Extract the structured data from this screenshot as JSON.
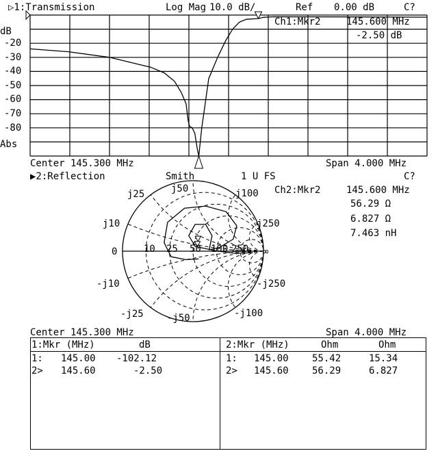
{
  "channel1": {
    "title": "▷1:Transmission",
    "format": "Log Mag",
    "scale": "10.0 dB/",
    "ref_label": "Ref",
    "ref_value": "0.00 dB",
    "cal_status": "C?",
    "marker_readout": {
      "label": "Ch1:Mkr2",
      "freq": "145.600 MHz",
      "value": "-2.50 dB"
    },
    "y_unit": "dB",
    "y_ticks": [
      "-20",
      "-30",
      "-40",
      "-50",
      "-60",
      "-70",
      "-80"
    ],
    "y_bottom_label": "Abs",
    "center": "Center 145.300 MHz",
    "span": "Span 4.000 MHz"
  },
  "channel2": {
    "title": "▶2:Reflection",
    "format": "Smith",
    "scale": "1 U FS",
    "cal_status": "C?",
    "marker_readout": {
      "label": "Ch2:Mkr2",
      "freq": "145.600 MHz",
      "resistance": "56.29 Ω",
      "reactance": "6.827 Ω",
      "inductance": "7.463 nH"
    },
    "smith_labels": {
      "zero": "0",
      "inf": "∞",
      "r10": "10",
      "r25": "25",
      "r50": "50",
      "r100": "100",
      "r250": "250",
      "jp10": "j10",
      "jp25": "j25",
      "jp50": "j50",
      "jp100": "j100",
      "jp250": "j250",
      "jn10": "-j10",
      "jn25": "-j25",
      "jn50": "-j50",
      "jn100": "-j100",
      "jn250": "-j250"
    },
    "center": "Center 145.300 MHz",
    "span": "Span 4.000 MHz"
  },
  "marker_table": {
    "left": {
      "headers": [
        "1:Mkr (MHz)",
        "dB"
      ],
      "rows": [
        [
          "1:",
          "145.00",
          "-102.12"
        ],
        [
          "2>",
          "145.60",
          "-2.50"
        ]
      ]
    },
    "right": {
      "headers": [
        "2:Mkr (MHz)",
        "Ohm",
        "Ohm"
      ],
      "rows": [
        [
          "1:",
          "145.00",
          "55.42",
          "15.34"
        ],
        [
          "2>",
          "145.60",
          "56.29",
          "6.827"
        ]
      ]
    }
  },
  "chart_data": [
    {
      "type": "line",
      "title": "Transmission",
      "xlabel": "",
      "ylabel": "dB",
      "xlim": [
        143.3,
        147.3
      ],
      "ylim": [
        -100,
        0
      ],
      "grid": true,
      "x": [
        143.3,
        143.686,
        144.1,
        144.514,
        144.652,
        144.755,
        144.824,
        144.872,
        144.893,
        144.907,
        144.934,
        144.96,
        144.985,
        145.0,
        145.012,
        145.03,
        145.06,
        145.1,
        145.19,
        145.272,
        145.341,
        145.41,
        145.479,
        145.6,
        145.652,
        145.755,
        146.5,
        147.3
      ],
      "y": [
        -24,
        -26,
        -30,
        -37,
        -41,
        -47,
        -55,
        -63,
        -75,
        -79,
        -80,
        -84,
        -95,
        -102,
        -92,
        -80,
        -65,
        -45,
        -30,
        -18,
        -10,
        -5,
        -3,
        -2.5,
        -1.6,
        -1.2,
        -1.3,
        -1.5
      ],
      "markers": [
        {
          "id": "1",
          "x": 145.0,
          "y": -102.12
        },
        {
          "id": "2",
          "x": 145.6,
          "y": -2.5
        }
      ]
    },
    {
      "type": "smith",
      "title": "Reflection",
      "z0": 50,
      "gamma_re": [
        0.08,
        -0.1,
        -0.31,
        -0.41,
        -0.36,
        -0.12,
        0.18,
        0.47,
        0.62,
        0.57,
        0.37,
        0.23,
        0.27,
        0.18,
        0.03,
        -0.06,
        0.03,
        0.06,
        0.35,
        0.6,
        0.85
      ],
      "gamma_im": [
        -0.11,
        -0.12,
        -0.08,
        0.12,
        0.41,
        0.61,
        0.64,
        0.56,
        0.36,
        0.17,
        0.05,
        0.02,
        0.22,
        0.38,
        0.38,
        0.22,
        0.07,
        0.06,
        0.0,
        -0.03,
        -0.02
      ],
      "markers": [
        {
          "id": "1",
          "r": 55.42,
          "x": 15.34
        },
        {
          "id": "2",
          "r": 56.29,
          "x": 6.827
        }
      ]
    }
  ]
}
